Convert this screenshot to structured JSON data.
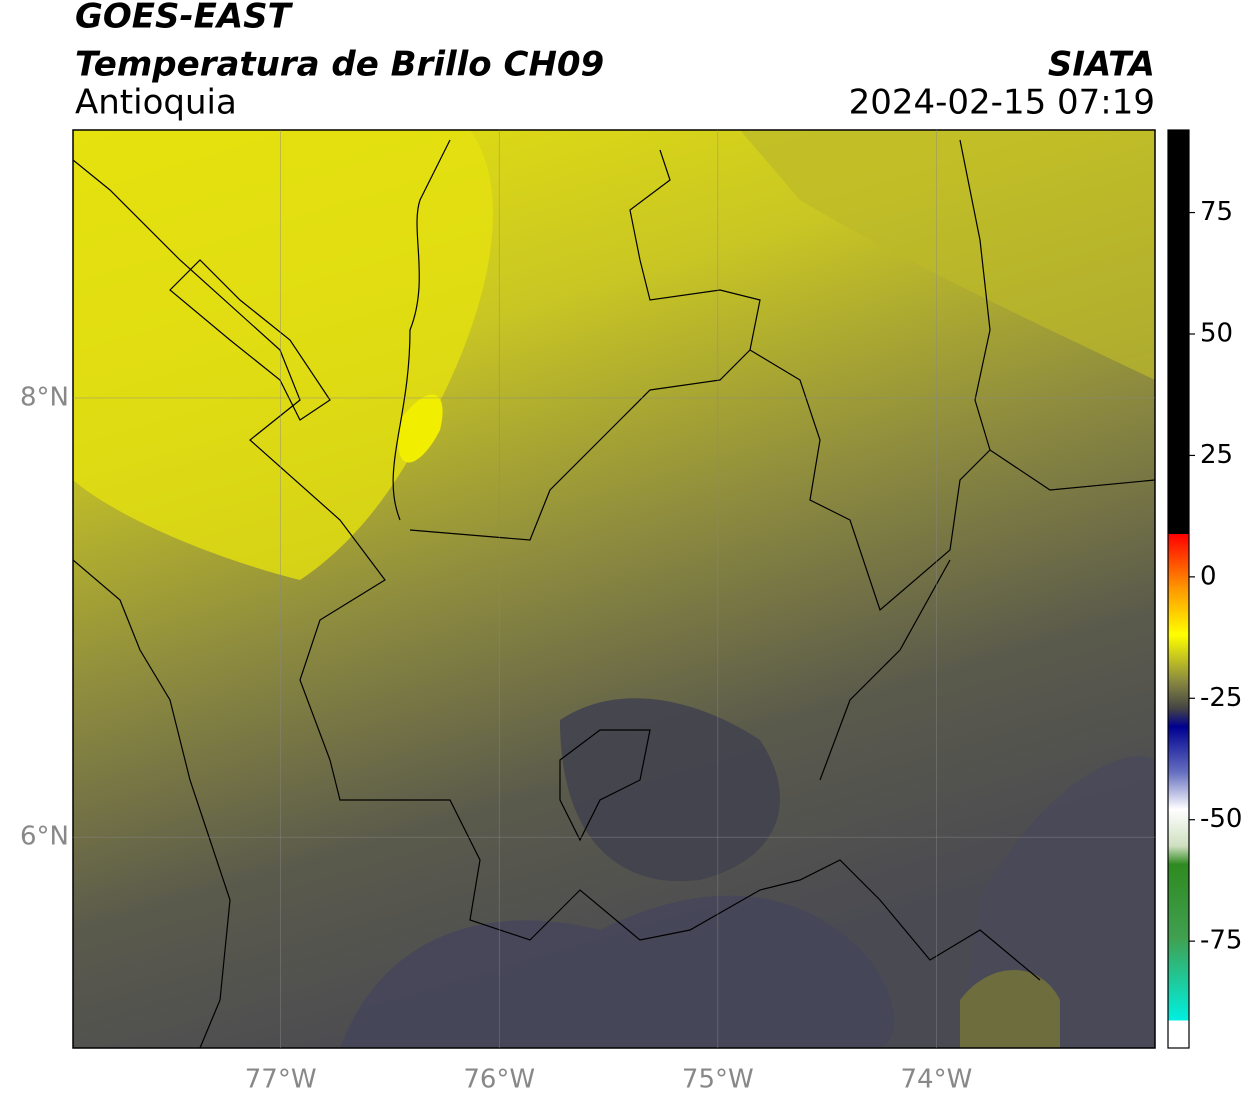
{
  "header": {
    "satellite": "GOES-EAST",
    "product": "Temperatura de Brillo CH09",
    "region": "Antioquia",
    "source": "SIATA",
    "datetime": "2024-02-15 07:19"
  },
  "map": {
    "xlim": [
      -77.95,
      -73.0
    ],
    "ylim": [
      5.04,
      9.22
    ],
    "xticks": [
      {
        "value": -77,
        "label": "77°W"
      },
      {
        "value": -76,
        "label": "76°W"
      },
      {
        "value": -75,
        "label": "75°W"
      },
      {
        "value": -74,
        "label": "74°W"
      }
    ],
    "yticks": [
      {
        "value": 6,
        "label": "6°N"
      },
      {
        "value": 8,
        "label": "8°N"
      }
    ],
    "grid": true
  },
  "colorbar": {
    "lim": [
      -97,
      92
    ],
    "ticks": [
      75,
      50,
      25,
      0,
      -25,
      -50,
      -75
    ]
  }
}
